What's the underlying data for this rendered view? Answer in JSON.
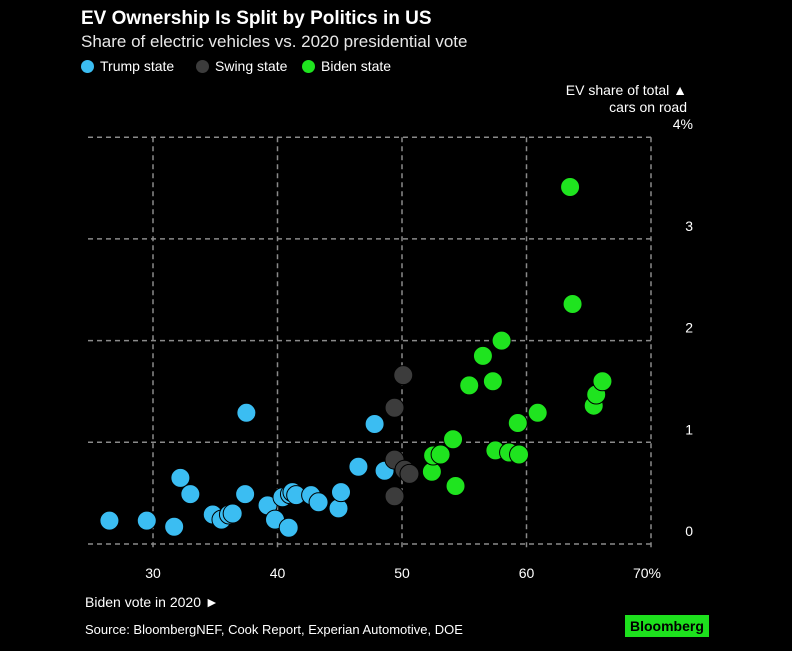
{
  "title": "EV Ownership Is Split by Politics in US",
  "subtitle": "Share of electric vehicles vs. 2020 presidential vote",
  "source": "Source: BloombergNEF, Cook Report, Experian Automotive, DOE",
  "logo": "Bloomberg",
  "colors": {
    "trump": "#3bbdf2",
    "swing": "#3c3c3c",
    "biden": "#1fe41f"
  },
  "chart_data": {
    "type": "scatter",
    "title": "EV Ownership Is Split by Politics in US",
    "xlabel": "Biden vote in 2020 ►",
    "ylabel_lines": [
      "EV share of total ▲",
      "cars on road"
    ],
    "xlim": [
      25,
      70
    ],
    "ylim": [
      0,
      4
    ],
    "xticks": [
      30,
      40,
      50,
      60,
      70
    ],
    "xtick_labels": [
      "30",
      "40",
      "50",
      "60",
      "70%"
    ],
    "yticks": [
      0,
      1,
      2,
      3,
      4
    ],
    "ytick_labels": [
      "0",
      "1",
      "2",
      "3",
      "4%"
    ],
    "grid": true,
    "legend": "top-left",
    "series": [
      {
        "name": "Trump state",
        "key": "trump",
        "points": [
          [
            26.5,
            0.23
          ],
          [
            29.5,
            0.23
          ],
          [
            31.7,
            0.17
          ],
          [
            32.2,
            0.65
          ],
          [
            33.0,
            0.49
          ],
          [
            34.8,
            0.29
          ],
          [
            35.5,
            0.24
          ],
          [
            36.1,
            0.29
          ],
          [
            36.4,
            0.3
          ],
          [
            37.4,
            0.49
          ],
          [
            37.5,
            1.29
          ],
          [
            39.2,
            0.38
          ],
          [
            39.8,
            0.24
          ],
          [
            40.4,
            0.46
          ],
          [
            41.0,
            0.49
          ],
          [
            41.2,
            0.51
          ],
          [
            41.5,
            0.48
          ],
          [
            40.9,
            0.16
          ],
          [
            42.7,
            0.48
          ],
          [
            43.3,
            0.41
          ],
          [
            44.9,
            0.35
          ],
          [
            45.1,
            0.51
          ],
          [
            46.5,
            0.76
          ],
          [
            47.8,
            1.18
          ],
          [
            48.6,
            0.72
          ]
        ]
      },
      {
        "name": "Swing state",
        "key": "swing",
        "points": [
          [
            50.1,
            1.66
          ],
          [
            49.4,
            1.34
          ],
          [
            49.4,
            0.83
          ],
          [
            50.2,
            0.73
          ],
          [
            50.6,
            0.69
          ],
          [
            49.4,
            0.47
          ]
        ]
      },
      {
        "name": "Biden state",
        "key": "biden",
        "points": [
          [
            58.0,
            2.0
          ],
          [
            56.5,
            1.85
          ],
          [
            55.4,
            1.56
          ],
          [
            57.3,
            1.6
          ],
          [
            60.9,
            1.29
          ],
          [
            59.3,
            1.19
          ],
          [
            54.1,
            1.03
          ],
          [
            52.4,
            0.71
          ],
          [
            52.5,
            0.87
          ],
          [
            53.1,
            0.88
          ],
          [
            54.3,
            0.57
          ],
          [
            57.5,
            0.92
          ],
          [
            58.6,
            0.9
          ],
          [
            59.4,
            0.88
          ],
          [
            65.4,
            1.36
          ],
          [
            65.6,
            1.47
          ],
          [
            66.1,
            1.6
          ],
          [
            63.5,
            3.51
          ],
          [
            63.7,
            2.36
          ]
        ]
      }
    ]
  }
}
